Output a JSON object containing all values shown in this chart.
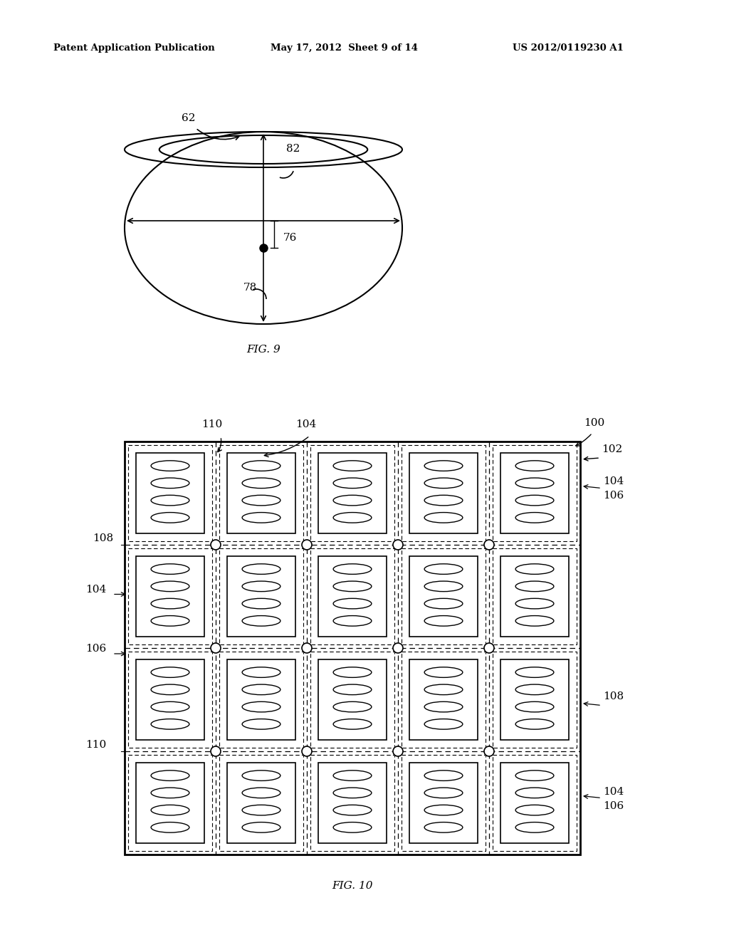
{
  "header_left": "Patent Application Publication",
  "header_mid": "May 17, 2012  Sheet 9 of 14",
  "header_right": "US 2012/0119230 A1",
  "fig9_label": "FIG. 9",
  "fig10_label": "FIG. 10",
  "label_62": "62",
  "label_76": "76",
  "label_78": "78",
  "label_82": "82",
  "label_100": "100",
  "label_102": "102",
  "label_104": "104",
  "label_106": "106",
  "label_108": "108",
  "label_110": "110",
  "bg_color": "#ffffff",
  "line_color": "#000000"
}
